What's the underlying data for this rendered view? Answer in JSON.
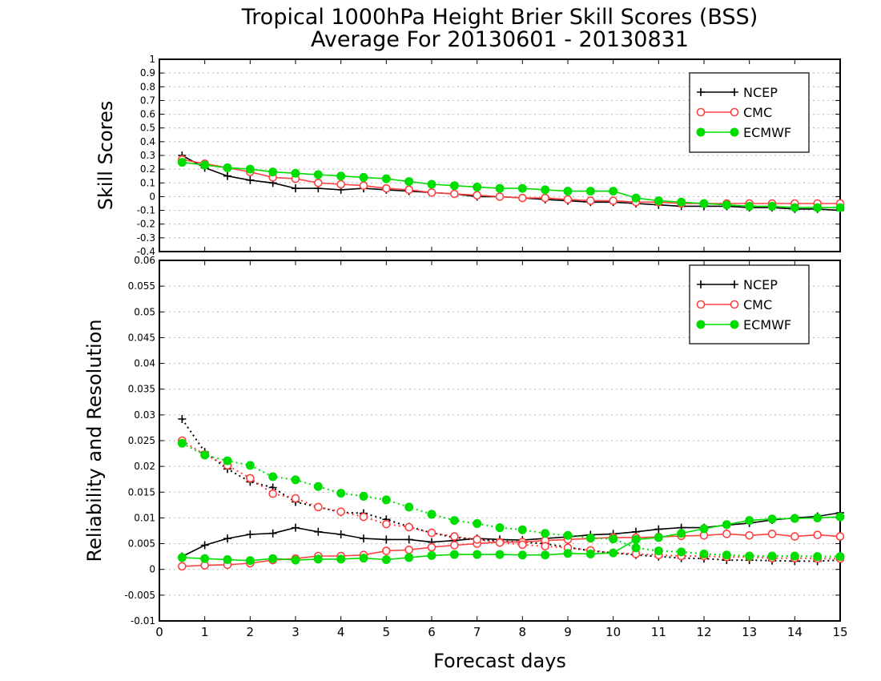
{
  "title": {
    "line1": "Tropical 1000hPa Height Brier Skill Scores (BSS)",
    "line2": "Average For 20130601 - 20130831"
  },
  "xlabel": "Forecast days",
  "colors": {
    "NCEP": "#000000",
    "CMC": "#ff4040",
    "ECMWF": "#00dd00"
  },
  "chart_data": [
    {
      "type": "line",
      "panel": "top",
      "ylabel": "Skill Scores",
      "xlim": [
        0,
        15
      ],
      "ylim": [
        -0.4,
        1
      ],
      "x_ticks": [
        0,
        1,
        2,
        3,
        4,
        5,
        6,
        7,
        8,
        9,
        10,
        11,
        12,
        13,
        14,
        15
      ],
      "y_ticks": [
        -0.4,
        -0.3,
        -0.2,
        -0.1,
        0,
        0.1,
        0.2,
        0.3,
        0.4,
        0.5,
        0.6,
        0.7,
        0.8,
        0.9,
        1
      ],
      "y_tick_labels": [
        "-0.4",
        "-0.3",
        "-0.2",
        "-0.1",
        "0",
        "0.1",
        "0.2",
        "0.3",
        "0.4",
        "0.5",
        "0.6",
        "0.7",
        "0.8",
        "0.9",
        "1"
      ],
      "grid": true,
      "legend": {
        "position": "top-right",
        "entries": [
          "NCEP",
          "CMC",
          "ECMWF"
        ]
      },
      "x": [
        0.5,
        1,
        1.5,
        2,
        2.5,
        3,
        3.5,
        4,
        4.5,
        5,
        5.5,
        6,
        6.5,
        7,
        7.5,
        8,
        8.5,
        9,
        9.5,
        10,
        10.5,
        11,
        11.5,
        12,
        12.5,
        13,
        13.5,
        14,
        14.5,
        15
      ],
      "series": [
        {
          "name": "NCEP",
          "style": "solid",
          "marker": "plus",
          "values": [
            0.3,
            0.21,
            0.15,
            0.12,
            0.1,
            0.06,
            0.06,
            0.05,
            0.06,
            0.05,
            0.04,
            0.03,
            0.02,
            0.0,
            0.0,
            -0.01,
            -0.02,
            -0.03,
            -0.04,
            -0.04,
            -0.05,
            -0.06,
            -0.07,
            -0.07,
            -0.07,
            -0.08,
            -0.08,
            -0.09,
            -0.09,
            -0.1
          ]
        },
        {
          "name": "CMC",
          "style": "solid",
          "marker": "open-circle",
          "values": [
            0.27,
            0.24,
            0.21,
            0.18,
            0.14,
            0.13,
            0.1,
            0.09,
            0.08,
            0.06,
            0.05,
            0.03,
            0.02,
            0.01,
            0.0,
            -0.01,
            -0.01,
            -0.02,
            -0.03,
            -0.03,
            -0.04,
            -0.04,
            -0.05,
            -0.05,
            -0.05,
            -0.05,
            -0.05,
            -0.05,
            -0.05,
            -0.05
          ]
        },
        {
          "name": "ECMWF",
          "style": "solid",
          "marker": "filled-circle",
          "values": [
            0.25,
            0.23,
            0.21,
            0.2,
            0.18,
            0.17,
            0.16,
            0.15,
            0.14,
            0.13,
            0.11,
            0.09,
            0.08,
            0.07,
            0.06,
            0.06,
            0.05,
            0.04,
            0.04,
            0.04,
            -0.01,
            -0.03,
            -0.04,
            -0.05,
            -0.06,
            -0.07,
            -0.07,
            -0.08,
            -0.08,
            -0.08
          ]
        }
      ]
    },
    {
      "type": "line",
      "panel": "bottom",
      "ylabel": "Reliability and Resolution",
      "xlim": [
        0,
        15
      ],
      "ylim": [
        -0.01,
        0.06
      ],
      "x_ticks": [
        0,
        1,
        2,
        3,
        4,
        5,
        6,
        7,
        8,
        9,
        10,
        11,
        12,
        13,
        14,
        15
      ],
      "y_ticks": [
        -0.01,
        -0.005,
        0,
        0.005,
        0.01,
        0.015,
        0.02,
        0.025,
        0.03,
        0.035,
        0.04,
        0.045,
        0.05,
        0.055,
        0.06
      ],
      "y_tick_labels": [
        "-0.01",
        "-0.005",
        "0",
        "0.005",
        "0.01",
        "0.015",
        "0.02",
        "0.025",
        "0.03",
        "0.035",
        "0.04",
        "0.045",
        "0.05",
        "0.055",
        "0.06"
      ],
      "grid": true,
      "legend": {
        "position": "top-right",
        "entries": [
          "NCEP",
          "CMC",
          "ECMWF"
        ]
      },
      "x": [
        0.5,
        1,
        1.5,
        2,
        2.5,
        3,
        3.5,
        4,
        4.5,
        5,
        5.5,
        6,
        6.5,
        7,
        7.5,
        8,
        8.5,
        9,
        9.5,
        10,
        10.5,
        11,
        11.5,
        12,
        12.5,
        13,
        13.5,
        14,
        14.5,
        15
      ],
      "series": [
        {
          "name": "NCEP",
          "style": "solid",
          "marker": "plus",
          "values": [
            0.0025,
            0.0047,
            0.006,
            0.0068,
            0.007,
            0.0081,
            0.0073,
            0.0068,
            0.006,
            0.0058,
            0.0058,
            0.0053,
            0.0056,
            0.006,
            0.0058,
            0.0057,
            0.006,
            0.0063,
            0.0067,
            0.0069,
            0.0073,
            0.0078,
            0.0081,
            0.0081,
            0.0086,
            0.009,
            0.0096,
            0.01,
            0.0103,
            0.011
          ]
        },
        {
          "name": "NCEP",
          "style": "dotted",
          "marker": "plus",
          "values": [
            0.0292,
            0.0228,
            0.0195,
            0.017,
            0.0159,
            0.0131,
            0.0121,
            0.0111,
            0.0109,
            0.0097,
            0.0083,
            0.0071,
            0.0062,
            0.0058,
            0.0055,
            0.0053,
            0.005,
            0.0043,
            0.0036,
            0.0032,
            0.0028,
            0.0025,
            0.0022,
            0.0021,
            0.0018,
            0.0018,
            0.0017,
            0.0016,
            0.0016,
            0.0018
          ]
        },
        {
          "name": "CMC",
          "style": "solid",
          "marker": "open-circle",
          "values": [
            0.0006,
            0.0008,
            0.0009,
            0.0012,
            0.0018,
            0.0021,
            0.0026,
            0.0026,
            0.0028,
            0.0036,
            0.0038,
            0.0043,
            0.0047,
            0.005,
            0.0053,
            0.0053,
            0.0056,
            0.0058,
            0.006,
            0.0062,
            0.0062,
            0.0063,
            0.0065,
            0.0066,
            0.0069,
            0.0066,
            0.0069,
            0.0064,
            0.0067,
            0.0064
          ]
        },
        {
          "name": "CMC",
          "style": "dotted",
          "marker": "open-circle",
          "values": [
            0.025,
            0.0223,
            0.0202,
            0.0177,
            0.0147,
            0.0138,
            0.0121,
            0.0112,
            0.0102,
            0.0088,
            0.0082,
            0.0071,
            0.0064,
            0.0058,
            0.0052,
            0.0048,
            0.0045,
            0.0042,
            0.0037,
            0.0032,
            0.003,
            0.0028,
            0.0026,
            0.0026,
            0.0024,
            0.0024,
            0.0022,
            0.0022,
            0.0021,
            0.0021
          ]
        },
        {
          "name": "ECMWF",
          "style": "solid",
          "marker": "filled-circle",
          "values": [
            0.0023,
            0.0021,
            0.0019,
            0.0017,
            0.0021,
            0.0018,
            0.002,
            0.002,
            0.0022,
            0.0019,
            0.0023,
            0.0027,
            0.0029,
            0.0029,
            0.0029,
            0.0028,
            0.0028,
            0.0031,
            0.003,
            0.0032,
            0.0058,
            0.0062,
            0.007,
            0.0079,
            0.0087,
            0.0095,
            0.0098,
            0.0099,
            0.01,
            0.0102
          ]
        },
        {
          "name": "ECMWF",
          "style": "dotted",
          "marker": "filled-circle",
          "values": [
            0.0245,
            0.0222,
            0.0211,
            0.0202,
            0.018,
            0.0174,
            0.0161,
            0.0148,
            0.0142,
            0.0135,
            0.0121,
            0.0107,
            0.0095,
            0.0089,
            0.0081,
            0.0077,
            0.007,
            0.0066,
            0.0061,
            0.0059,
            0.0042,
            0.0036,
            0.0034,
            0.003,
            0.0028,
            0.0026,
            0.0026,
            0.0026,
            0.0025,
            0.0025
          ]
        }
      ]
    }
  ]
}
